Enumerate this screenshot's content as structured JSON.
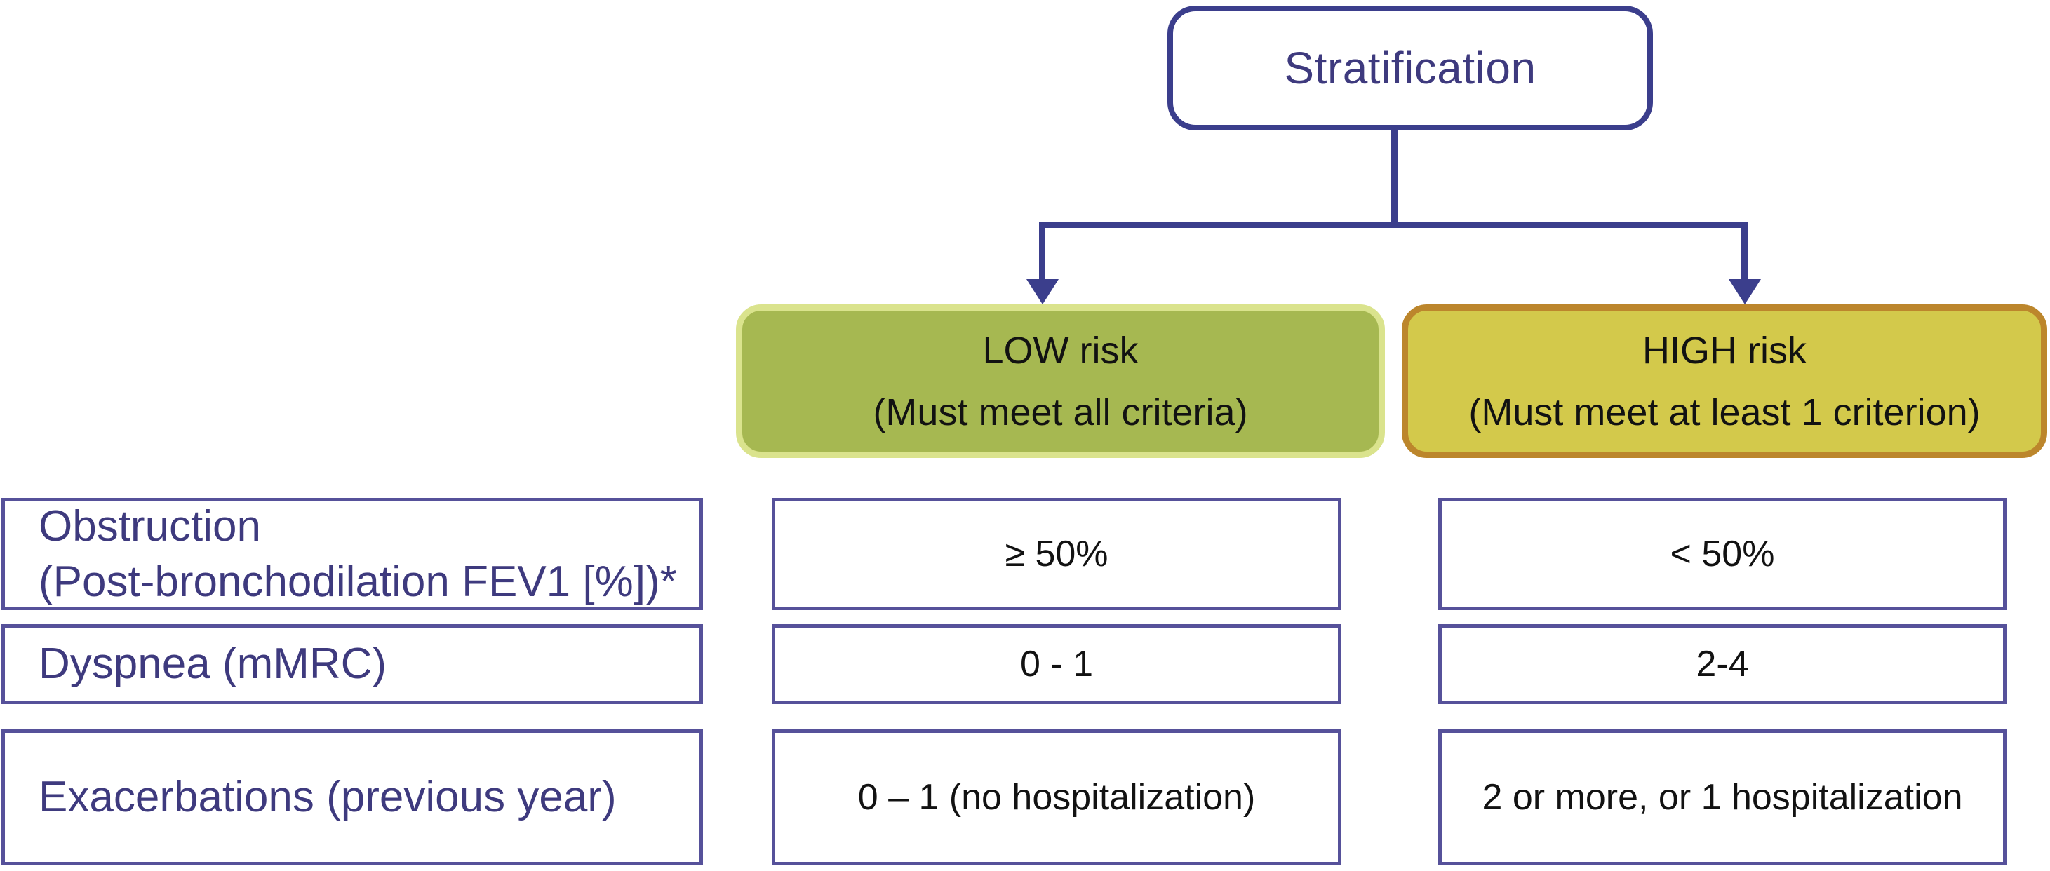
{
  "figure": {
    "root_label": "Stratification",
    "branches": {
      "low": {
        "title": "LOW risk",
        "subtitle": "(Must meet all criteria)"
      },
      "high": {
        "title": "HIGH risk",
        "subtitle": "(Must meet at least 1 criterion)"
      }
    },
    "criteria": [
      {
        "label_line1": "Obstruction",
        "label_line2": "(Post-bronchodilation FEV1 [%])*",
        "low": "≥ 50%",
        "high": "< 50%"
      },
      {
        "label_line1": "Dyspnea (mMRC)",
        "label_line2": "",
        "low": "0 - 1",
        "high": "2-4"
      },
      {
        "label_line1": "Exacerbations (previous year)",
        "label_line2": "",
        "low": "0 – 1 (no hospitalization)",
        "high": "2 or more, or 1 hospitalization"
      }
    ],
    "colors": {
      "indigo_text": "#3e3a7e",
      "connector_line": "#3b3e8c",
      "cell_border": "#56519a",
      "low_fill": "#a6b851",
      "low_border": "#dae38d",
      "high_fill": "#d3c94b",
      "high_border": "#bc862c",
      "value_text": "#121212"
    }
  }
}
